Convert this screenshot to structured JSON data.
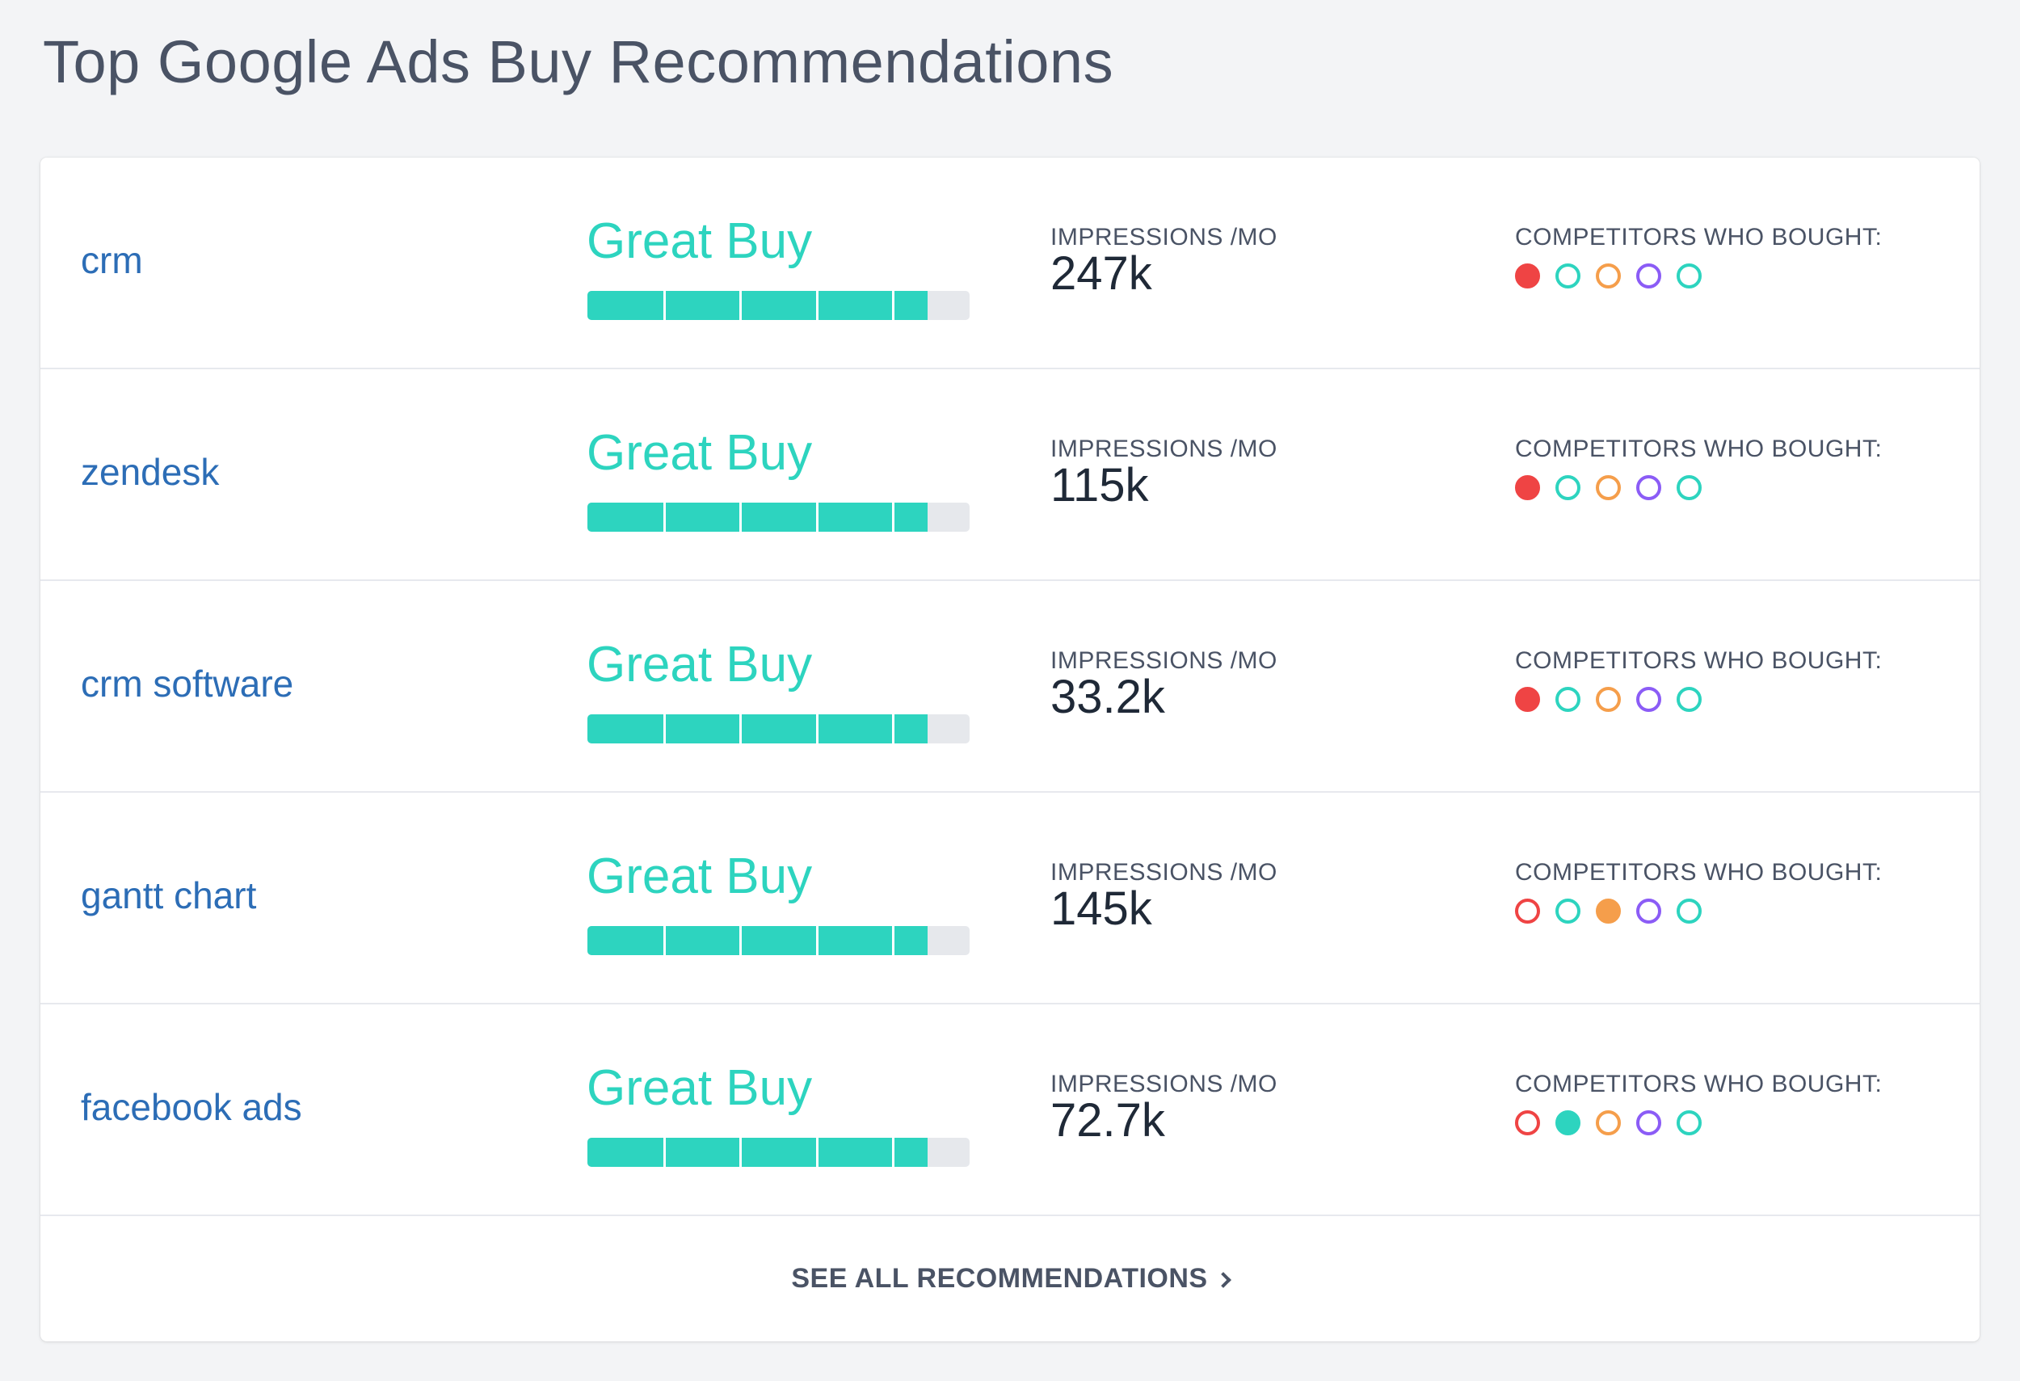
{
  "header": {
    "title": "Top Google Ads Buy Recommendations"
  },
  "rows": [
    {
      "keyword": "crm",
      "rating": "Great Buy",
      "score": 0.89,
      "impressions_label": "IMPRESSIONS /MO",
      "impressions": "247k",
      "competitors_label": "COMPETITORS WHO BOUGHT:",
      "competitors": [
        {
          "color": "#ef4444",
          "bought": true
        },
        {
          "color": "#2dd4bf",
          "bought": false
        },
        {
          "color": "#f59e4b",
          "bought": false
        },
        {
          "color": "#8b5cf6",
          "bought": false
        },
        {
          "color": "#2dd4bf",
          "bought": false
        }
      ]
    },
    {
      "keyword": "zendesk",
      "rating": "Great Buy",
      "score": 0.89,
      "impressions_label": "IMPRESSIONS /MO",
      "impressions": "115k",
      "competitors_label": "COMPETITORS WHO BOUGHT:",
      "competitors": [
        {
          "color": "#ef4444",
          "bought": true
        },
        {
          "color": "#2dd4bf",
          "bought": false
        },
        {
          "color": "#f59e4b",
          "bought": false
        },
        {
          "color": "#8b5cf6",
          "bought": false
        },
        {
          "color": "#2dd4bf",
          "bought": false
        }
      ]
    },
    {
      "keyword": "crm software",
      "rating": "Great Buy",
      "score": 0.89,
      "impressions_label": "IMPRESSIONS /MO",
      "impressions": "33.2k",
      "competitors_label": "COMPETITORS WHO BOUGHT:",
      "competitors": [
        {
          "color": "#ef4444",
          "bought": true
        },
        {
          "color": "#2dd4bf",
          "bought": false
        },
        {
          "color": "#f59e4b",
          "bought": false
        },
        {
          "color": "#8b5cf6",
          "bought": false
        },
        {
          "color": "#2dd4bf",
          "bought": false
        }
      ]
    },
    {
      "keyword": "gantt chart",
      "rating": "Great Buy",
      "score": 0.89,
      "impressions_label": "IMPRESSIONS /MO",
      "impressions": "145k",
      "competitors_label": "COMPETITORS WHO BOUGHT:",
      "competitors": [
        {
          "color": "#ef4444",
          "bought": false
        },
        {
          "color": "#2dd4bf",
          "bought": false
        },
        {
          "color": "#f59e4b",
          "bought": true
        },
        {
          "color": "#8b5cf6",
          "bought": false
        },
        {
          "color": "#2dd4bf",
          "bought": false
        }
      ]
    },
    {
      "keyword": "facebook ads",
      "rating": "Great Buy",
      "score": 0.89,
      "impressions_label": "IMPRESSIONS /MO",
      "impressions": "72.7k",
      "competitors_label": "COMPETITORS WHO BOUGHT:",
      "competitors": [
        {
          "color": "#ef4444",
          "bought": false
        },
        {
          "color": "#2dd4bf",
          "bought": true
        },
        {
          "color": "#f59e4b",
          "bought": false
        },
        {
          "color": "#8b5cf6",
          "bought": false
        },
        {
          "color": "#2dd4bf",
          "bought": false
        }
      ]
    }
  ],
  "footer": {
    "see_all_label": "SEE ALL RECOMMENDATIONS"
  }
}
